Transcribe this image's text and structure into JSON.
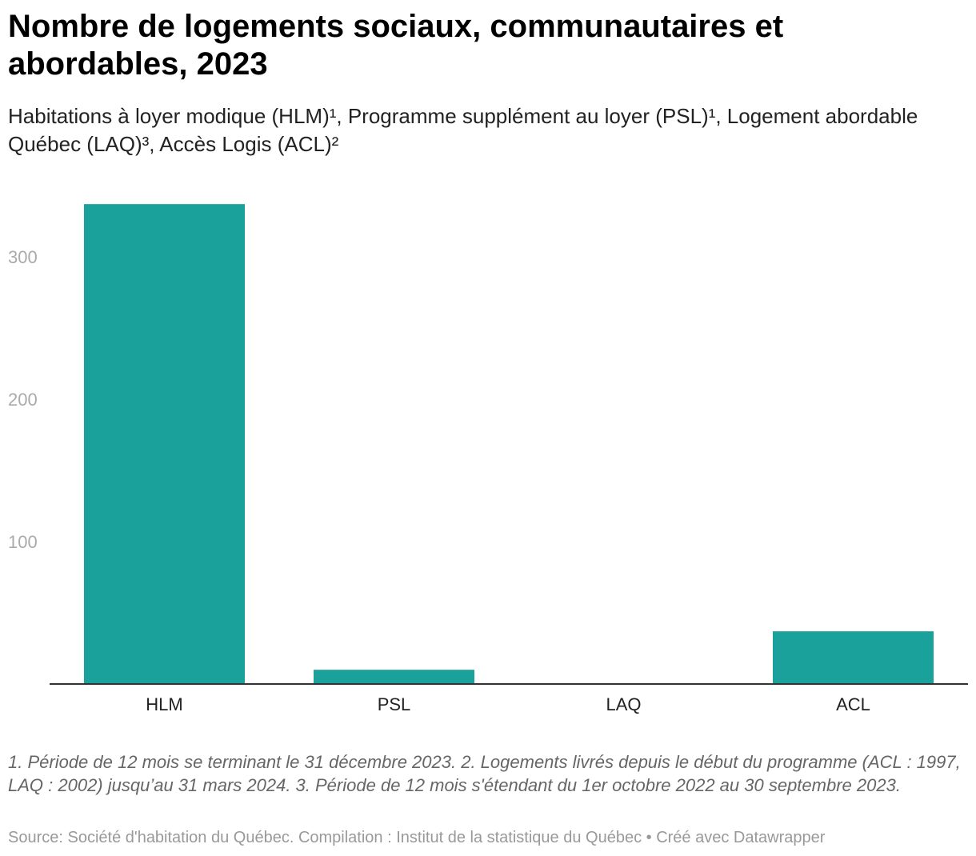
{
  "chart_data": {
    "type": "bar",
    "title": "Nombre de logements sociaux, communautaires et abordables, 2023",
    "subtitle": "Habitations à loyer modique (HLM)¹, Programme supplément au loyer (PSL)¹, Logement abordable Québec (LAQ)³, Accès Logis (ACL)²",
    "categories": [
      "HLM",
      "PSL",
      "LAQ",
      "ACL"
    ],
    "values": [
      337,
      10,
      0,
      37
    ],
    "yticks": [
      100,
      200,
      300
    ],
    "ylim": [
      0,
      340
    ],
    "xlabel": "",
    "ylabel": "",
    "grid": false,
    "legend": "none",
    "bar_color": "#1aa19b",
    "notes": "1. Période de 12 mois se terminant le 31 décembre 2023. 2. Logements livrés depuis le début du programme (ACL : 1997, LAQ : 2002) jusqu’au 31 mars 2024. 3. Période de 12 mois s'étendant du 1er octobre 2022 au 30 septembre 2023.",
    "source": "Source: Société d'habitation du Québec. Compilation : Institut de la statistique du Québec • Créé avec Datawrapper"
  }
}
